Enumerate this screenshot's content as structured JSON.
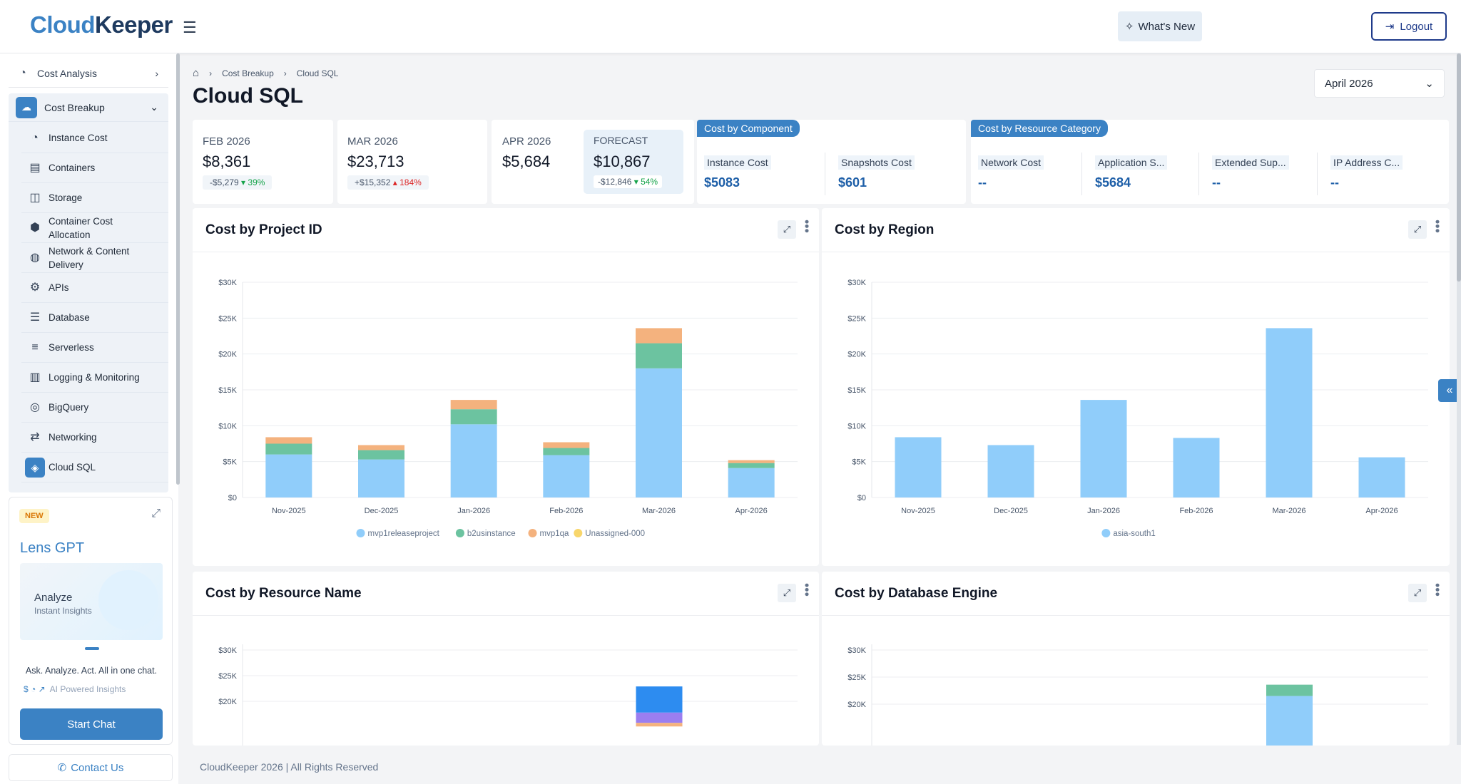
{
  "brand": {
    "logo_part1": "Cloud",
    "logo_part2": "Keeper"
  },
  "header": {
    "whats_new": "What's New",
    "logout": "Logout"
  },
  "sidebar": {
    "top_item": "Cost Analysis",
    "group": "Cost Breakup",
    "items": [
      {
        "label": "Instance Cost",
        "icon": "coin-icon"
      },
      {
        "label": "Containers",
        "icon": "container-icon"
      },
      {
        "label": "Storage",
        "icon": "storage-icon"
      },
      {
        "label": "Container Cost Allocation",
        "icon": "hexagon-icon"
      },
      {
        "label": "Network & Content Delivery",
        "icon": "globe-icon"
      },
      {
        "label": "APIs",
        "icon": "api-icon"
      },
      {
        "label": "Database",
        "icon": "database-icon"
      },
      {
        "label": "Serverless",
        "icon": "serverless-icon"
      },
      {
        "label": "Logging & Monitoring",
        "icon": "monitoring-icon"
      },
      {
        "label": "BigQuery",
        "icon": "bigquery-icon"
      },
      {
        "label": "Networking",
        "icon": "networking-icon"
      },
      {
        "label": "Cloud SQL",
        "icon": "cloud-sql-icon",
        "active": true
      }
    ]
  },
  "lens_gpt": {
    "badge": "NEW",
    "title": "Lens GPT",
    "art_title": "Analyze",
    "art_sub": "Instant Insights",
    "tagline": "Ask. Analyze. Act. All in one chat.",
    "ai_label": "AI Powered Insights",
    "button": "Start Chat"
  },
  "contact": "Contact Us",
  "breadcrumb": {
    "level1": "Cost Breakup",
    "level2": "Cloud SQL"
  },
  "page_title": "Cloud SQL",
  "month_select": "April 2026",
  "kpis": [
    {
      "label": "FEB 2026",
      "value": "$8,361",
      "delta": "-$5,279",
      "pct": "39%",
      "dir": "down"
    },
    {
      "label": "MAR 2026",
      "value": "$23,713",
      "delta": "+$15,352",
      "pct": "184%",
      "dir": "up"
    },
    {
      "label": "APR 2026",
      "value": "$5,684"
    }
  ],
  "forecast": {
    "label": "FORECAST",
    "value": "$10,867",
    "delta": "-$12,846",
    "pct": "54%"
  },
  "by_component": {
    "title": "Cost by Component",
    "items": [
      {
        "name": "Instance Cost",
        "value": "$5083"
      },
      {
        "name": "Snapshots Cost",
        "value": "$601"
      }
    ]
  },
  "by_category": {
    "title": "Cost by Resource Category",
    "items": [
      {
        "name": "Network Cost",
        "value": "--"
      },
      {
        "name": "Application S...",
        "value": "$5684"
      },
      {
        "name": "Extended Sup...",
        "value": "--"
      },
      {
        "name": "IP Address C...",
        "value": "--"
      }
    ]
  },
  "panels": {
    "project": "Cost by Project ID",
    "region": "Cost by Region",
    "resource": "Cost by Resource Name",
    "engine": "Cost by Database Engine"
  },
  "footer": "CloudKeeper 2026 | All Rights Reserved",
  "chart_data": [
    {
      "type": "bar",
      "stacked": true,
      "title": "Cost by Project ID",
      "categories": [
        "Nov-2025",
        "Dec-2025",
        "Jan-2026",
        "Feb-2026",
        "Mar-2026",
        "Apr-2026"
      ],
      "ylim": [
        0,
        30000
      ],
      "yticks": [
        "$0",
        "$5K",
        "$10K",
        "$15K",
        "$20K",
        "$25K",
        "$30K"
      ],
      "legend": "bottom",
      "series": [
        {
          "name": "mvp1releaseproject",
          "color": "#90cdfa",
          "values": [
            6000,
            5300,
            10200,
            5900,
            18000,
            4100
          ]
        },
        {
          "name": "b2usinstance",
          "color": "#6cc3a0",
          "values": [
            1500,
            1300,
            2100,
            1000,
            3500,
            700
          ]
        },
        {
          "name": "mvp1qa",
          "color": "#f4b27e",
          "values": [
            900,
            700,
            1300,
            800,
            2100,
            400
          ]
        },
        {
          "name": "Unassigned-000",
          "color": "#f8d66b",
          "values": [
            0,
            0,
            0,
            0,
            0,
            0
          ]
        }
      ]
    },
    {
      "type": "bar",
      "title": "Cost by Region",
      "categories": [
        "Nov-2025",
        "Dec-2025",
        "Jan-2026",
        "Feb-2026",
        "Mar-2026",
        "Apr-2026"
      ],
      "ylim": [
        0,
        30000
      ],
      "yticks": [
        "$0",
        "$5K",
        "$10K",
        "$15K",
        "$20K",
        "$25K",
        "$30K"
      ],
      "legend": "bottom",
      "series": [
        {
          "name": "asia-south1",
          "color": "#90cdfa",
          "values": [
            8400,
            7300,
            13600,
            8300,
            23600,
            5600
          ]
        }
      ]
    },
    {
      "type": "bar",
      "stacked": true,
      "title": "Cost by Resource Name",
      "ylim": [
        0,
        30000
      ],
      "yticks": [
        "$20K",
        "$25K",
        "$30K"
      ],
      "series": [
        {
          "color": "#f4b27e",
          "values": [
            700
          ]
        },
        {
          "color": "#9b7ef0",
          "values": [
            2000
          ]
        },
        {
          "color": "#2d8cf0",
          "values": [
            5100
          ]
        }
      ]
    },
    {
      "type": "bar",
      "stacked": true,
      "title": "Cost by Database Engine",
      "ylim": [
        0,
        30000
      ],
      "yticks": [
        "$20K",
        "$25K",
        "$30K"
      ],
      "series": [
        {
          "color": "#90cdfa",
          "values": [
            21500
          ]
        },
        {
          "color": "#6cc3a0",
          "values": [
            2100
          ]
        }
      ]
    }
  ]
}
